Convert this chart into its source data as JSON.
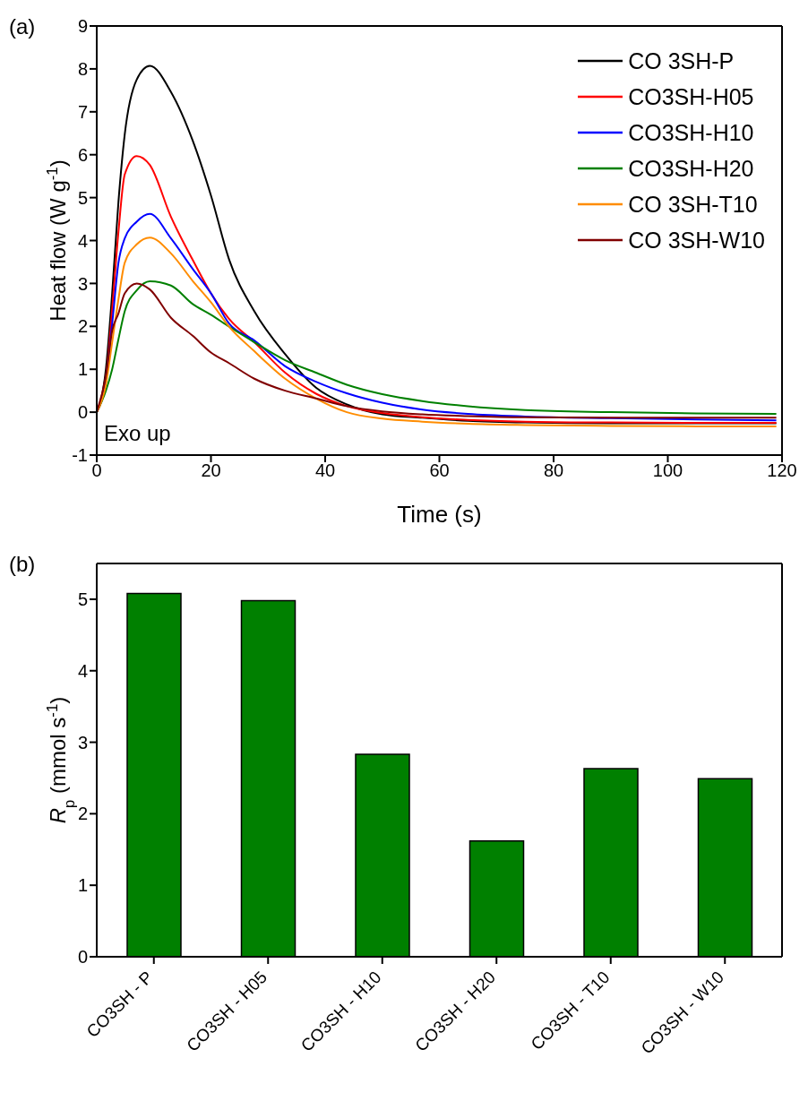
{
  "chart_data": [
    {
      "type": "line",
      "title": "(a)",
      "xlabel": "Time (s)",
      "ylabel": "Heat flow (W g$^{-1}$)",
      "x": [
        0,
        1.6,
        2.7,
        3.8,
        4.9,
        7.0,
        9.3,
        13,
        16.8,
        20,
        23.2,
        27.6,
        33,
        38.4,
        43.8,
        50,
        57,
        65,
        75,
        90,
        105,
        119
      ],
      "series": [
        {
          "name": "CO 3SH-P",
          "color": "#000000",
          "values": [
            0,
            1.0,
            2.77,
            4.9,
            6.47,
            7.75,
            8.07,
            7.46,
            6.33,
            5.05,
            3.55,
            2.35,
            1.35,
            0.57,
            0.18,
            -0.05,
            -0.13,
            -0.2,
            -0.24,
            -0.26,
            -0.26,
            -0.26
          ]
        },
        {
          "name": "CO3SH-H05",
          "color": "#ff0000",
          "values": [
            0,
            0.78,
            2.4,
            4.2,
            5.54,
            5.97,
            5.76,
            4.55,
            3.55,
            2.77,
            2.17,
            1.63,
            0.92,
            0.43,
            0.14,
            -0.02,
            -0.12,
            -0.18,
            -0.22,
            -0.24,
            -0.25,
            -0.25
          ]
        },
        {
          "name": "CO3SH-H10",
          "color": "#0000ff",
          "values": [
            0,
            0.78,
            2.06,
            3.48,
            4.05,
            4.44,
            4.62,
            4.05,
            3.34,
            2.77,
            2.06,
            1.67,
            1.07,
            0.71,
            0.44,
            0.22,
            0.06,
            -0.04,
            -0.1,
            -0.14,
            -0.17,
            -0.19
          ]
        },
        {
          "name": "CO3SH-H20",
          "color": "#008000",
          "values": [
            0,
            0.5,
            1.0,
            1.7,
            2.35,
            2.84,
            3.05,
            2.95,
            2.52,
            2.27,
            1.99,
            1.63,
            1.21,
            0.92,
            0.64,
            0.42,
            0.26,
            0.14,
            0.05,
            0.0,
            -0.03,
            -0.04
          ]
        },
        {
          "name": "CO 3SH-T10",
          "color": "#ff8c00",
          "values": [
            0,
            0.64,
            1.63,
            2.63,
            3.48,
            3.91,
            4.07,
            3.7,
            3.06,
            2.56,
            1.99,
            1.42,
            0.78,
            0.32,
            0.0,
            -0.15,
            -0.22,
            -0.27,
            -0.3,
            -0.32,
            -0.33,
            -0.33
          ]
        },
        {
          "name": "CO 3SH-W10",
          "color": "#800000",
          "values": [
            0,
            0.85,
            1.9,
            2.3,
            2.77,
            3.0,
            2.86,
            2.2,
            1.78,
            1.39,
            1.14,
            0.78,
            0.5,
            0.32,
            0.14,
            0.02,
            -0.05,
            -0.09,
            -0.12,
            -0.13,
            -0.13,
            -0.13
          ]
        }
      ],
      "xlim": [
        0,
        120
      ],
      "xticks": [
        0,
        20,
        40,
        60,
        80,
        100,
        120
      ],
      "ylim": [
        -1,
        9
      ],
      "yticks": [
        -1,
        0,
        1,
        2,
        3,
        4,
        5,
        6,
        7,
        8,
        9
      ],
      "grid": false,
      "legend": "top right",
      "marker": "none",
      "line_style": "solid",
      "annotations": [
        "Exo up"
      ]
    },
    {
      "type": "bar",
      "title": "(b)",
      "ylabel": "R$_{p}$ (mmol s$^{-1}$)",
      "categories": [
        "CO3SH - P",
        "CO3SH - H05",
        "CO3SH - H10",
        "CO3SH - H20",
        "CO3SH - T10",
        "CO3SH - W10"
      ],
      "values": [
        5.08,
        4.98,
        2.83,
        1.62,
        2.63,
        2.49
      ],
      "color": "#008000",
      "ylim": [
        0,
        5.5
      ],
      "yticks": [
        0,
        1,
        2,
        3,
        4,
        5
      ],
      "grid": false,
      "legend": false
    }
  ]
}
